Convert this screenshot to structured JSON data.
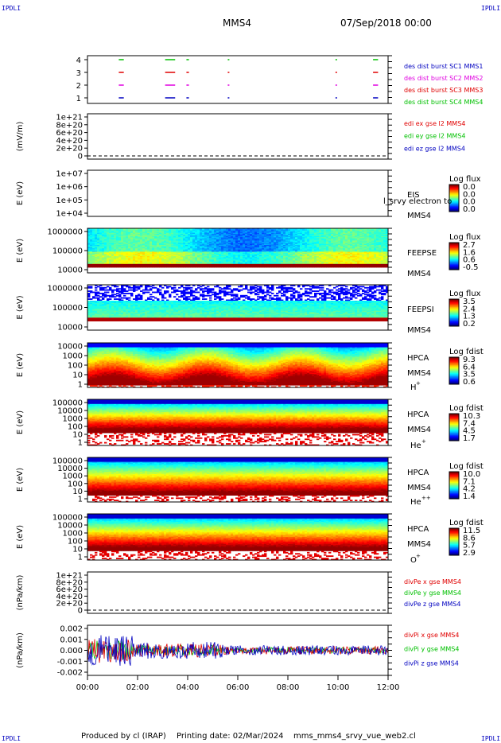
{
  "header": {
    "corner_label": "IPDLI",
    "spacecraft": "MMS4",
    "datetime": "07/Sep/2018 00:00"
  },
  "footer": {
    "produced_by": "Produced by cl (IRAP)",
    "printing_date": "Printing date: 02/Mar/2024",
    "filename": "mms_mms4_srvy_vue_web2.cl"
  },
  "colors": {
    "red": "#e00000",
    "green": "#00c000",
    "magenta": "#e000e0",
    "blue": "#0000c0"
  },
  "chart_data": [
    {
      "id": "burst",
      "type": "timeline",
      "y_ticks": [
        "4",
        "3",
        "2",
        "1"
      ],
      "legend": [
        {
          "label": "des dist burst SC1 MMS1",
          "color": "#0000c0"
        },
        {
          "label": "des dist burst SC2 MMS2",
          "color": "#e000e0"
        },
        {
          "label": "des dist burst SC3 MMS3",
          "color": "#e00000"
        },
        {
          "label": "des dist burst SC4 MMS4",
          "color": "#00c000"
        }
      ],
      "intervals_hours": [
        [
          1.25,
          1.45
        ],
        [
          3.1,
          3.5
        ],
        [
          3.95,
          4.05
        ],
        [
          5.6,
          5.65
        ],
        [
          9.9,
          9.95
        ],
        [
          11.4,
          11.6
        ]
      ]
    },
    {
      "id": "edi",
      "type": "line",
      "ylabel": "(mV/m)",
      "y_ticks": [
        "1e+21",
        "8e+20",
        "6e+20",
        "4e+20",
        "2e+20",
        "0"
      ],
      "legend": [
        {
          "label": "edi ex gse l2 MMS4",
          "color": "#e00000"
        },
        {
          "label": "edi ey gse l2 MMS4",
          "color": "#00c000"
        },
        {
          "label": "edi ez gse l2 MMS4",
          "color": "#0000c0"
        }
      ]
    },
    {
      "id": "eis",
      "type": "heatmap",
      "ylabel": "E (eV)",
      "y_ticks": [
        "1e+07",
        "1e+06",
        "1e+05",
        "1e+04"
      ],
      "instrument": [
        "EIS",
        "MMS4"
      ],
      "overlay": "l_srvy electron to",
      "colorbar": {
        "title": "Log flux",
        "ticks": [
          "0.0",
          "0.0",
          "0.0",
          "0.0"
        ]
      }
    },
    {
      "id": "feepse",
      "type": "heatmap",
      "ylabel": "E (eV)",
      "y_ticks": [
        "1000000",
        "100000",
        "10000"
      ],
      "instrument": [
        "FEEPSE",
        "MMS4"
      ],
      "colorbar": {
        "title": "Log flux",
        "ticks": [
          "2.7",
          "1.6",
          "0.6",
          "-0.5"
        ]
      }
    },
    {
      "id": "feepsi",
      "type": "heatmap",
      "ylabel": "E (eV)",
      "y_ticks": [
        "1000000",
        "100000",
        "10000"
      ],
      "instrument": [
        "FEEPSI",
        "MMS4"
      ],
      "colorbar": {
        "title": "Log flux",
        "ticks": [
          "3.5",
          "2.4",
          "1.3",
          "0.2"
        ]
      }
    },
    {
      "id": "hpca-h",
      "type": "heatmap",
      "ylabel": "E (eV)",
      "y_ticks": [
        "10000",
        "1000",
        "100",
        "10",
        "1"
      ],
      "instrument": [
        "HPCA",
        "MMS4"
      ],
      "species": "H",
      "species_charge": "+",
      "colorbar": {
        "title": "Log fdist",
        "ticks": [
          "9.3",
          "6.4",
          "3.5",
          "0.6"
        ]
      }
    },
    {
      "id": "hpca-he",
      "type": "heatmap",
      "ylabel": "E (eV)",
      "y_ticks": [
        "100000",
        "10000",
        "1000",
        "100",
        "10",
        "1"
      ],
      "instrument": [
        "HPCA",
        "MMS4"
      ],
      "species": "He",
      "species_charge": "+",
      "colorbar": {
        "title": "Log fdist",
        "ticks": [
          "10.3",
          "7.4",
          "4.5",
          "1.7"
        ]
      }
    },
    {
      "id": "hpca-he2",
      "type": "heatmap",
      "ylabel": "E (eV)",
      "y_ticks": [
        "100000",
        "10000",
        "1000",
        "100",
        "10",
        "1"
      ],
      "instrument": [
        "HPCA",
        "MMS4"
      ],
      "species": "He",
      "species_charge": "++",
      "colorbar": {
        "title": "Log fdist",
        "ticks": [
          "10.0",
          "7.1",
          "4.2",
          "1.4"
        ]
      }
    },
    {
      "id": "hpca-o",
      "type": "heatmap",
      "ylabel": "E (eV)",
      "y_ticks": [
        "100000",
        "10000",
        "1000",
        "100",
        "10",
        "1"
      ],
      "instrument": [
        "HPCA",
        "MMS4"
      ],
      "species": "O",
      "species_charge": "+",
      "colorbar": {
        "title": "Log fdist",
        "ticks": [
          "11.5",
          "8.6",
          "5.7",
          "2.9"
        ]
      }
    },
    {
      "id": "divpe",
      "type": "line",
      "ylabel": "(nPa/km)",
      "y_ticks": [
        "1e+21",
        "8e+20",
        "6e+20",
        "4e+20",
        "2e+20",
        "0"
      ],
      "legend": [
        {
          "label": "divPe x gse MMS4",
          "color": "#e00000"
        },
        {
          "label": "divPe y gse MMS4",
          "color": "#00c000"
        },
        {
          "label": "divPe z gse MMS4",
          "color": "#0000c0"
        }
      ]
    },
    {
      "id": "divpi",
      "type": "line",
      "ylabel": "(nPa/km)",
      "y_ticks": [
        "0.002",
        "0.001",
        "0.000",
        "-0.001",
        "-0.002"
      ],
      "ylim": [
        -0.0025,
        0.0025
      ],
      "legend": [
        {
          "label": "divPi x gse MMS4",
          "color": "#e00000"
        },
        {
          "label": "divPi y gse MMS4",
          "color": "#00c000"
        },
        {
          "label": "divPi z gse MMS4",
          "color": "#0000c0"
        }
      ]
    }
  ],
  "xaxis": {
    "ticks": [
      "00:00",
      "02:00",
      "04:00",
      "06:00",
      "08:00",
      "10:00",
      "12:00"
    ],
    "range_hours": [
      0,
      12
    ]
  }
}
